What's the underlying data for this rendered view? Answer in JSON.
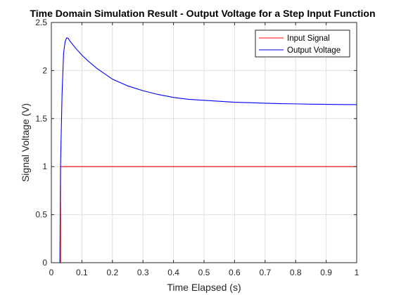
{
  "chart_data": {
    "type": "line",
    "title": "Time Domain Simulation Result - Output Voltage for a Step Input Function",
    "xlabel": "Time Elapsed (s)",
    "ylabel": "Signal Voltage (V)",
    "xlim": [
      0,
      1
    ],
    "ylim": [
      0,
      2.5
    ],
    "xticks": [
      0,
      0.1,
      0.2,
      0.3,
      0.4,
      0.5,
      0.6,
      0.7,
      0.8,
      0.9,
      1
    ],
    "xtick_labels": [
      "0",
      "0.1",
      "0.2",
      "0.3",
      "0.4",
      "0.5",
      "0.6",
      "0.7",
      "0.8",
      "0.9",
      "1"
    ],
    "yticks": [
      0,
      0.5,
      1,
      1.5,
      2,
      2.5
    ],
    "ytick_labels": [
      "0",
      "0.5",
      "1",
      "1.5",
      "2",
      "2.5"
    ],
    "grid": true,
    "legend_position": "top-right",
    "series": [
      {
        "name": "Input Signal",
        "color": "#ff0000",
        "x": [
          0,
          0.03,
          0.03,
          1
        ],
        "y": [
          0,
          0,
          1,
          1
        ]
      },
      {
        "name": "Output Voltage",
        "color": "#0000ff",
        "x": [
          0,
          0.028,
          0.03,
          0.035,
          0.04,
          0.045,
          0.05,
          0.055,
          0.06,
          0.07,
          0.08,
          0.1,
          0.12,
          0.15,
          0.2,
          0.25,
          0.3,
          0.35,
          0.4,
          0.45,
          0.5,
          0.55,
          0.6,
          0.65,
          0.7,
          0.75,
          0.8,
          0.85,
          0.9,
          0.95,
          1
        ],
        "y": [
          0,
          0,
          1.0,
          1.75,
          2.18,
          2.3,
          2.34,
          2.335,
          2.31,
          2.27,
          2.23,
          2.16,
          2.1,
          2.02,
          1.91,
          1.84,
          1.79,
          1.75,
          1.72,
          1.7,
          1.69,
          1.68,
          1.67,
          1.665,
          1.66,
          1.655,
          1.653,
          1.65,
          1.648,
          1.646,
          1.645
        ]
      }
    ]
  }
}
